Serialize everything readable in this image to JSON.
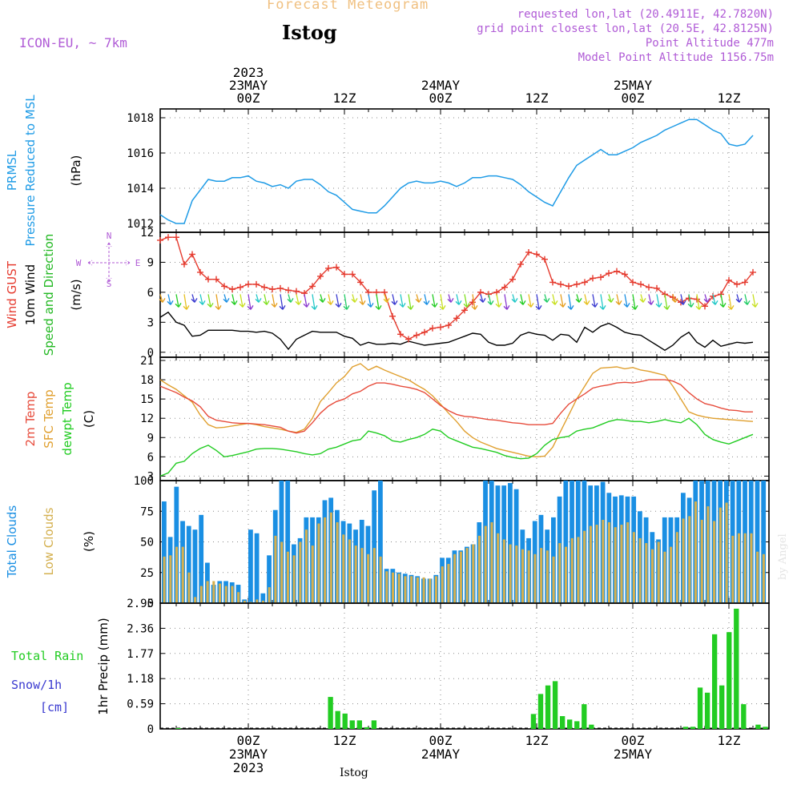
{
  "header": {
    "title": "Forecast Meteogram",
    "location": "Istog",
    "model": "ICON-EU, ~ 7km",
    "requested": "requested lon,lat (20.4911E, 42.7820N)",
    "gridpoint": "grid point closest lon,lat (20.5E, 42.8125N)",
    "point_alt": "Point Altitude 477m",
    "model_alt": "Model Point Altitude 1156.75m",
    "footer_location": "Istog",
    "watermark": "by Angel"
  },
  "colors": {
    "pressure": "#1e9be6",
    "gust": "#e53a2e",
    "wind": "#000000",
    "wind_label": "#22b822",
    "temp2m": "#e74c3c",
    "sfc": "#e0a030",
    "dewpt": "#22cc22",
    "cloud_total": "#1a8fe3",
    "cloud_low": "#d4b050",
    "rain": "#22cc22",
    "snow": "#3a3ad0",
    "title": "#f0c080",
    "info": "#b05bd6",
    "grid": "#888888"
  },
  "time_axis": {
    "top_labels": [
      {
        "hour": 0,
        "lines": [
          "2023",
          "23MAY",
          "00Z"
        ]
      },
      {
        "hour": 12,
        "lines": [
          "12Z"
        ]
      },
      {
        "hour": 24,
        "lines": [
          "24MAY",
          "00Z"
        ]
      },
      {
        "hour": 36,
        "lines": [
          "12Z"
        ]
      },
      {
        "hour": 48,
        "lines": [
          "25MAY",
          "00Z"
        ]
      },
      {
        "hour": 60,
        "lines": [
          "12Z"
        ]
      }
    ],
    "bottom_labels": [
      {
        "hour": 0,
        "lines": [
          "00Z",
          "23MAY",
          "2023"
        ]
      },
      {
        "hour": 12,
        "lines": [
          "12Z"
        ]
      },
      {
        "hour": 24,
        "lines": [
          "00Z",
          "24MAY"
        ]
      },
      {
        "hour": 36,
        "lines": [
          "12Z"
        ]
      },
      {
        "hour": 48,
        "lines": [
          "00Z",
          "25MAY"
        ]
      },
      {
        "hour": 60,
        "lines": [
          "12Z"
        ]
      }
    ]
  },
  "panels": {
    "pressure": {
      "labels": [
        "PRMSL",
        "Pressure Reduced to MSL"
      ],
      "unit": "(hPa)",
      "ticks": [
        "1012",
        "1014",
        "1016",
        "1018"
      ]
    },
    "wind": {
      "labels": [
        "Wind GUST",
        "10m Wind",
        "Speed and Direction"
      ],
      "unit": "(m/s)",
      "ticks": [
        "0",
        "3",
        "6",
        "9",
        "12"
      ],
      "compass": {
        "n": "N",
        "s": "S",
        "e": "E",
        "w": "W"
      }
    },
    "temp": {
      "labels": [
        "2m Temp",
        "SFC Temp",
        "dewpt Temp"
      ],
      "unit": "(C)",
      "ticks": [
        "3",
        "6",
        "9",
        "12",
        "15",
        "18",
        "21"
      ]
    },
    "cloud": {
      "labels": [
        "Total Clouds",
        "Low Clouds"
      ],
      "unit": "(%)",
      "ticks": [
        "0",
        "25",
        "50",
        "75",
        "100"
      ]
    },
    "precip": {
      "labels": [
        "Total  Rain",
        "Snow/1h",
        "[cm]"
      ],
      "unit": "1hr Precip (mm)",
      "ticks": [
        "0",
        "0.59",
        "1.18",
        "1.77",
        "2.36",
        "2.95"
      ]
    }
  },
  "chart_data": [
    {
      "type": "line",
      "title": "PRMSL Pressure Reduced to MSL",
      "ylabel": "(hPa)",
      "ylim": [
        1011.5,
        1018.5
      ],
      "x_start_hour": -11,
      "x_step_hours": 1,
      "series": [
        {
          "name": "PRMSL",
          "values": [
            1012.5,
            1012.2,
            1012.0,
            1012.0,
            1013.3,
            1013.9,
            1014.5,
            1014.4,
            1014.4,
            1014.6,
            1014.6,
            1014.7,
            1014.4,
            1014.3,
            1014.1,
            1014.2,
            1014.0,
            1014.4,
            1014.5,
            1014.5,
            1014.2,
            1013.8,
            1013.6,
            1013.2,
            1012.8,
            1012.7,
            1012.6,
            1012.6,
            1013.0,
            1013.5,
            1014.0,
            1014.3,
            1014.4,
            1014.3,
            1014.3,
            1014.4,
            1014.3,
            1014.1,
            1014.3,
            1014.6,
            1014.6,
            1014.7,
            1014.7,
            1014.6,
            1014.5,
            1014.2,
            1013.8,
            1013.5,
            1013.2,
            1013.0,
            1013.8,
            1014.6,
            1015.3,
            1015.6,
            1015.9,
            1016.2,
            1015.9,
            1015.9,
            1016.1,
            1016.3,
            1016.6,
            1016.8,
            1017.0,
            1017.3,
            1017.5,
            1017.7,
            1017.9,
            1017.9,
            1017.6,
            1017.3,
            1017.1,
            1016.5,
            1016.4,
            1016.5,
            1017.0
          ]
        }
      ]
    },
    {
      "type": "line",
      "title": "Wind GUST / 10m Wind Speed and Direction",
      "ylabel": "(m/s)",
      "ylim": [
        -0.5,
        12
      ],
      "x_start_hour": -11,
      "x_step_hours": 1,
      "series": [
        {
          "name": "Wind GUST",
          "values": [
            11.2,
            11.5,
            11.5,
            8.8,
            9.8,
            8.0,
            7.3,
            7.3,
            6.6,
            6.3,
            6.5,
            6.8,
            6.8,
            6.5,
            6.3,
            6.4,
            6.2,
            6.1,
            5.9,
            6.6,
            7.6,
            8.4,
            8.5,
            7.8,
            7.8,
            7.0,
            6.0,
            6.0,
            6.0,
            3.6,
            1.8,
            1.3,
            1.7,
            2.0,
            2.4,
            2.5,
            2.7,
            3.4,
            4.2,
            5.0,
            6.0,
            5.8,
            6.0,
            6.5,
            7.3,
            8.8,
            10.0,
            9.8,
            9.3,
            7.0,
            6.8,
            6.6,
            6.8,
            7.0,
            7.4,
            7.5,
            7.9,
            8.1,
            7.8,
            7.0,
            6.8,
            6.5,
            6.4,
            5.8,
            5.5,
            5.0,
            5.4,
            5.3,
            4.6,
            5.6,
            5.8,
            7.2,
            6.8,
            7.0,
            8.0
          ]
        },
        {
          "name": "10m Wind",
          "values": [
            3.5,
            4.0,
            3.0,
            2.7,
            1.6,
            1.7,
            2.2,
            2.2,
            2.2,
            2.2,
            2.1,
            2.1,
            2.0,
            2.1,
            1.9,
            1.3,
            0.3,
            1.3,
            1.7,
            2.1,
            2.0,
            2.0,
            2.0,
            1.6,
            1.4,
            0.7,
            1.0,
            0.8,
            0.8,
            0.9,
            0.8,
            1.1,
            0.9,
            0.7,
            0.8,
            0.9,
            1.0,
            1.3,
            1.6,
            1.9,
            1.8,
            1.0,
            0.7,
            0.7,
            0.9,
            1.7,
            2.0,
            1.8,
            1.7,
            1.2,
            1.8,
            1.7,
            1.0,
            2.5,
            2.0,
            2.6,
            2.9,
            2.5,
            2.0,
            1.8,
            1.7,
            1.2,
            0.7,
            0.2,
            0.7,
            1.5,
            2.0,
            1.0,
            0.5,
            1.2,
            0.6,
            0.8,
            1.0,
            0.9,
            1.0
          ]
        }
      ]
    },
    {
      "type": "line",
      "title": "2m Temp / SFC Temp / dewpt Temp",
      "ylabel": "(C)",
      "ylim": [
        2.3,
        21.5
      ],
      "x_start_hour": -11,
      "x_step_hours": 1,
      "series": [
        {
          "name": "2m Temp",
          "values": [
            17.0,
            16.5,
            16.0,
            15.3,
            14.7,
            13.8,
            12.3,
            11.7,
            11.5,
            11.3,
            11.2,
            11.2,
            11.1,
            11.0,
            10.8,
            10.6,
            10.0,
            9.7,
            10.0,
            11.3,
            12.8,
            13.9,
            14.6,
            15.0,
            15.8,
            16.2,
            17.0,
            17.5,
            17.5,
            17.3,
            17.0,
            16.8,
            16.5,
            16.0,
            15.0,
            14.0,
            13.2,
            12.6,
            12.3,
            12.2,
            12.0,
            11.8,
            11.7,
            11.5,
            11.3,
            11.2,
            11.0,
            11.0,
            11.0,
            11.2,
            12.8,
            14.2,
            15.0,
            15.8,
            16.7,
            17.0,
            17.2,
            17.5,
            17.6,
            17.5,
            17.7,
            18.0,
            18.0,
            18.0,
            17.8,
            17.2,
            16.0,
            15.0,
            14.3,
            14.0,
            13.6,
            13.3,
            13.2,
            13.0,
            13.0
          ]
        },
        {
          "name": "SFC Temp",
          "values": [
            18.0,
            17.2,
            16.5,
            15.5,
            14.5,
            12.5,
            11.0,
            10.5,
            10.6,
            10.8,
            11.0,
            11.2,
            11.0,
            10.7,
            10.5,
            10.3,
            10.0,
            9.8,
            10.3,
            12.0,
            14.6,
            16.0,
            17.5,
            18.5,
            20.0,
            20.5,
            19.5,
            20.1,
            19.5,
            19.0,
            18.5,
            18.0,
            17.2,
            16.5,
            15.5,
            14.2,
            12.8,
            11.5,
            10.0,
            9.0,
            8.3,
            7.8,
            7.3,
            7.0,
            6.7,
            6.4,
            6.1,
            6.0,
            6.1,
            7.5,
            10.0,
            12.5,
            15.0,
            17.0,
            19.0,
            19.8,
            19.9,
            20.0,
            19.7,
            19.9,
            19.5,
            19.3,
            19.0,
            18.7,
            17.0,
            15.0,
            13.0,
            12.5,
            12.2,
            12.0,
            11.9,
            11.8,
            11.7,
            11.6,
            11.5
          ]
        },
        {
          "name": "dewpt Temp",
          "values": [
            3.0,
            3.5,
            5.0,
            5.3,
            6.5,
            7.3,
            7.8,
            7.0,
            6.0,
            6.2,
            6.5,
            6.8,
            7.2,
            7.3,
            7.3,
            7.2,
            7.0,
            6.8,
            6.5,
            6.3,
            6.5,
            7.2,
            7.5,
            8.0,
            8.5,
            8.7,
            10.0,
            9.7,
            9.3,
            8.5,
            8.3,
            8.7,
            9.0,
            9.5,
            10.3,
            10.0,
            9.0,
            8.5,
            8.0,
            7.5,
            7.3,
            7.0,
            6.7,
            6.2,
            5.9,
            5.7,
            5.8,
            6.5,
            7.8,
            8.7,
            9.0,
            9.2,
            10.0,
            10.3,
            10.5,
            11.0,
            11.5,
            11.8,
            11.7,
            11.5,
            11.5,
            11.3,
            11.5,
            11.8,
            11.5,
            11.3,
            12.0,
            11.0,
            9.5,
            8.7,
            8.3,
            8.0,
            8.5,
            9.0,
            9.5
          ]
        }
      ]
    },
    {
      "type": "bar",
      "title": "Total Clouds / Low Clouds",
      "ylabel": "(%)",
      "ylim": [
        0,
        100
      ],
      "x_start_hour": -11,
      "x_step_hours": 1,
      "series": [
        {
          "name": "Total Clouds",
          "values": [
            83,
            54,
            95,
            67,
            63,
            60,
            72,
            33,
            15,
            18,
            18,
            17,
            15,
            3,
            60,
            57,
            8,
            39,
            76,
            100,
            100,
            48,
            53,
            70,
            70,
            70,
            84,
            86,
            76,
            67,
            65,
            60,
            68,
            63,
            92,
            100,
            28,
            28,
            25,
            24,
            23,
            22,
            20,
            20,
            23,
            37,
            37,
            43,
            43,
            46,
            48,
            66,
            100,
            100,
            96,
            96,
            98,
            93,
            60,
            53,
            67,
            72,
            60,
            70,
            87,
            100,
            100,
            100,
            100,
            96,
            96,
            99,
            90,
            87,
            88,
            87,
            87,
            75,
            70,
            58,
            52,
            70,
            70,
            70,
            90,
            86,
            100,
            100,
            100,
            100,
            100,
            100,
            100,
            100,
            100,
            100,
            100,
            100
          ]
        },
        {
          "name": "Low Clouds",
          "values": [
            38,
            39,
            46,
            46,
            25,
            5,
            14,
            18,
            18,
            16,
            14,
            14,
            9,
            2,
            1,
            3,
            2,
            13,
            55,
            50,
            42,
            39,
            50,
            60,
            47,
            65,
            70,
            74,
            66,
            56,
            52,
            47,
            45,
            40,
            45,
            38,
            26,
            25,
            24,
            22,
            22,
            21,
            21,
            20,
            22,
            30,
            32,
            40,
            42,
            45,
            48,
            55,
            63,
            66,
            57,
            52,
            48,
            47,
            44,
            43,
            40,
            45,
            43,
            38,
            49,
            46,
            53,
            54,
            59,
            63,
            64,
            68,
            66,
            62,
            64,
            66,
            58,
            53,
            49,
            44,
            50,
            42,
            46,
            58,
            69,
            71,
            83,
            68,
            79,
            67,
            78,
            82,
            55,
            57,
            57,
            57,
            42,
            40
          ]
        }
      ]
    },
    {
      "type": "bar",
      "title": "1hr Precip",
      "ylabel": "1hr Precip (mm)",
      "ylim": [
        0,
        2.95
      ],
      "x_start_hour": -11,
      "x_step_hours": 1,
      "series": [
        {
          "name": "Total Rain",
          "values": [
            0,
            0,
            0.02,
            0,
            0,
            0,
            0,
            0,
            0,
            0,
            0,
            0,
            0,
            0,
            0,
            0,
            0,
            0,
            0,
            0,
            0,
            0,
            0,
            0.75,
            0.42,
            0.36,
            0.2,
            0.2,
            0.04,
            0.2,
            0,
            0,
            0,
            0,
            0,
            0,
            0,
            0,
            0,
            0,
            0,
            0,
            0,
            0,
            0,
            0,
            0,
            0,
            0,
            0,
            0,
            0.35,
            0.82,
            1.02,
            1.12,
            0.3,
            0.22,
            0.18,
            0.58,
            0.1,
            0,
            0,
            0,
            0,
            0,
            0,
            0,
            0,
            0,
            0,
            0,
            0,
            0.05,
            0.05,
            0.97,
            0.85,
            2.22,
            1.02,
            2.27,
            2.82,
            0.58,
            0,
            0.1,
            0.05
          ]
        },
        {
          "name": "Snow/1h",
          "values": []
        }
      ]
    }
  ]
}
